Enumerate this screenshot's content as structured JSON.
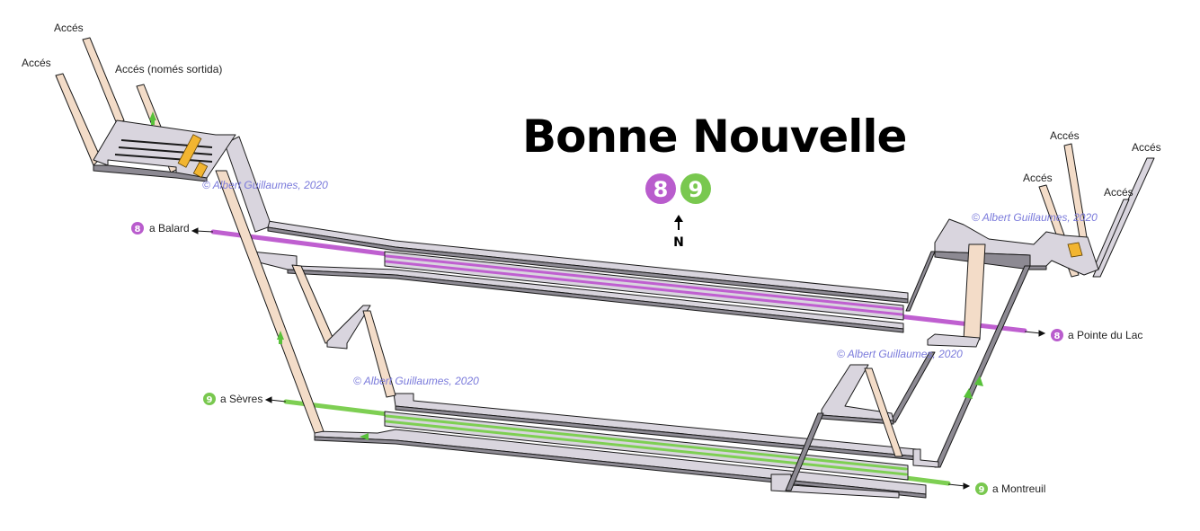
{
  "station": {
    "name": "Bonne Nouvelle",
    "north_label": "N"
  },
  "lines": [
    {
      "id": "8",
      "label": "8",
      "color": "#b95ccd"
    },
    {
      "id": "9",
      "label": "9",
      "color": "#79c84f"
    }
  ],
  "destinations": {
    "line8_west": {
      "badge": "8",
      "text": "a Balard"
    },
    "line8_east": {
      "badge": "8",
      "text": "a Pointe du Lac"
    },
    "line9_west": {
      "badge": "9",
      "text": "a Sèvres"
    },
    "line9_east": {
      "badge": "9",
      "text": "a Montreuil"
    }
  },
  "accesses": {
    "west_1": "Accés",
    "west_2": "Accés",
    "west_exit_only": "Accés (només sortida)",
    "east_1": "Accés",
    "east_2": "Accés",
    "east_3": "Accés",
    "east_4": "Accés"
  },
  "copyright": {
    "c1": "© Albert Guillaumes, 2020",
    "c2": "© Albert Guillaumes, 2020",
    "c3": "© Albert Guillaumes, 2020",
    "c4": "© Albert Guillaumes, 2020"
  },
  "colors": {
    "wall_top": "#d9d5de",
    "wall_side": "#8d8a93",
    "stair": "#f3dcc8",
    "escalator": "#f2b531",
    "copyright_text": "#7a7adb"
  }
}
